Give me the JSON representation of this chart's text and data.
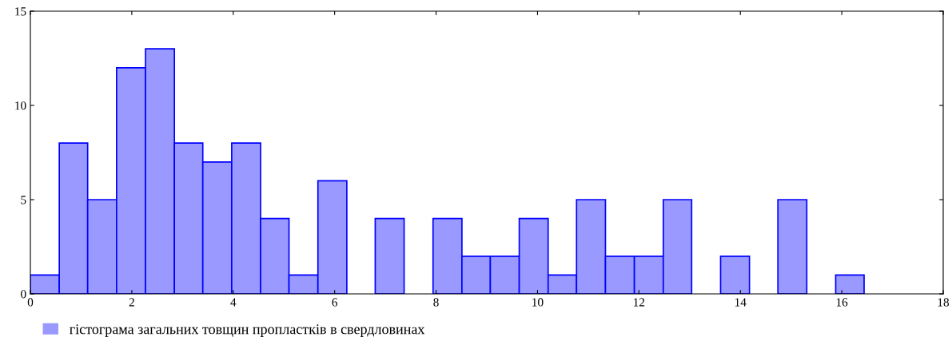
{
  "chart_data": {
    "type": "histogram",
    "bins": [
      0,
      0.57,
      1.13,
      1.7,
      2.27,
      2.84,
      3.4,
      3.97,
      4.54,
      5.1,
      5.67,
      6.24,
      6.8,
      7.37,
      7.94,
      8.51,
      9.07,
      9.64,
      10.21,
      10.77,
      11.34,
      11.91,
      12.48,
      13.04,
      13.61,
      14.18,
      14.74,
      15.31,
      15.88,
      16.44
    ],
    "series": [
      {
        "name": "гістограма загальних товщин пропластків в свердловинах",
        "color": "#9999ff",
        "values": [
          1,
          8,
          5,
          12,
          13,
          8,
          7,
          8,
          4,
          1,
          6,
          0,
          4,
          0,
          4,
          2,
          2,
          4,
          1,
          5,
          2,
          2,
          5,
          0,
          2,
          0,
          5,
          0,
          1
        ]
      }
    ],
    "xlim": [
      0,
      18
    ],
    "xticks": [
      0,
      2,
      4,
      6,
      8,
      10,
      12,
      14,
      16,
      18
    ],
    "ylim": [
      0,
      15
    ],
    "yticks": [
      0,
      5,
      10,
      15
    ],
    "grid": false,
    "legend": "bottom left"
  }
}
